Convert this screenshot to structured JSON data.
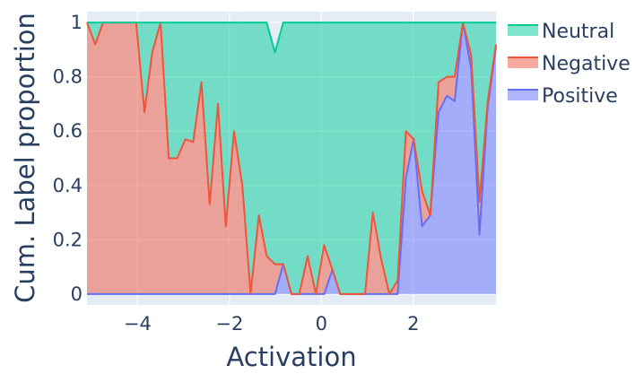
{
  "chart_data": {
    "type": "area",
    "stacked": true,
    "xlabel": "Activation",
    "ylabel": "Cum. Label proportion",
    "xlim": [
      -5.1,
      3.8
    ],
    "ylim": [
      -0.04,
      1.04
    ],
    "x_ticks": [
      -4,
      -2,
      0,
      2
    ],
    "y_ticks": [
      0,
      0.2,
      0.4,
      0.6,
      0.8,
      1
    ],
    "x_tick_labels": [
      "−4",
      "−2",
      "0",
      "2"
    ],
    "y_tick_labels": [
      "0",
      "0.2",
      "0.4",
      "0.6",
      "0.8",
      "1"
    ],
    "grid": true,
    "legend_position": "top-right",
    "x": [
      -5.1,
      -4.92,
      -4.75,
      -4.57,
      -4.39,
      -4.21,
      -4.03,
      -3.85,
      -3.68,
      -3.5,
      -3.32,
      -3.14,
      -2.96,
      -2.79,
      -2.61,
      -2.43,
      -2.25,
      -2.08,
      -1.9,
      -1.72,
      -1.54,
      -1.36,
      -1.19,
      -1.01,
      -0.83,
      -0.65,
      -0.48,
      -0.3,
      -0.12,
      0.06,
      0.24,
      0.41,
      0.59,
      0.77,
      0.95,
      1.12,
      1.3,
      1.48,
      1.66,
      1.84,
      2.01,
      2.19,
      2.37,
      2.55,
      2.73,
      2.9,
      3.08,
      3.26,
      3.44,
      3.62,
      3.8
    ],
    "series": [
      {
        "name": "Positive",
        "color": "#636efa",
        "values": [
          0,
          0,
          0,
          0,
          0,
          0,
          0,
          0,
          0,
          0,
          0,
          0,
          0,
          0,
          0,
          0,
          0,
          0,
          0,
          0,
          0,
          0,
          0,
          0,
          0.11,
          0,
          0,
          0,
          0,
          0,
          0.09,
          0,
          0,
          0,
          0,
          0,
          0,
          0,
          0,
          0.43,
          0.57,
          0.25,
          0.29,
          0.67,
          0.73,
          0.71,
          1,
          0.83,
          0.22,
          0.69,
          0.91
        ]
      },
      {
        "name": "Negative",
        "color": "#ef553b",
        "values": [
          1,
          0.92,
          1,
          1,
          1,
          1,
          1,
          0.67,
          0.89,
          1,
          0.5,
          0.5,
          0.57,
          0.56,
          0.78,
          0.33,
          0.7,
          0.25,
          0.6,
          0.4,
          0,
          0.29,
          0.14,
          0.11,
          0,
          0,
          0,
          0.14,
          0,
          0.18,
          0,
          0,
          0,
          0,
          0,
          0.3,
          0.13,
          0,
          0.05,
          0.17,
          0,
          0.13,
          0,
          0.11,
          0.07,
          0.09,
          0,
          0.05,
          0.12,
          0.02,
          0.01
        ]
      },
      {
        "name": "Neutral",
        "color": "#00cc96",
        "values": [
          0,
          0.08,
          0,
          0,
          0,
          0,
          0,
          0.33,
          0.11,
          0,
          0.5,
          0.5,
          0.43,
          0.44,
          0.22,
          0.67,
          0.3,
          0.75,
          0.4,
          0.6,
          1,
          0.71,
          0.86,
          0.78,
          0.89,
          1,
          1,
          0.86,
          1,
          0.82,
          0.91,
          1,
          1,
          1,
          1,
          0.7,
          0.87,
          1,
          0.95,
          0.4,
          0.43,
          0.62,
          0.71,
          0.22,
          0.2,
          0.2,
          0,
          0.12,
          0.66,
          0.29,
          0.08
        ]
      }
    ],
    "legend_order": [
      "Neutral",
      "Negative",
      "Positive"
    ]
  }
}
